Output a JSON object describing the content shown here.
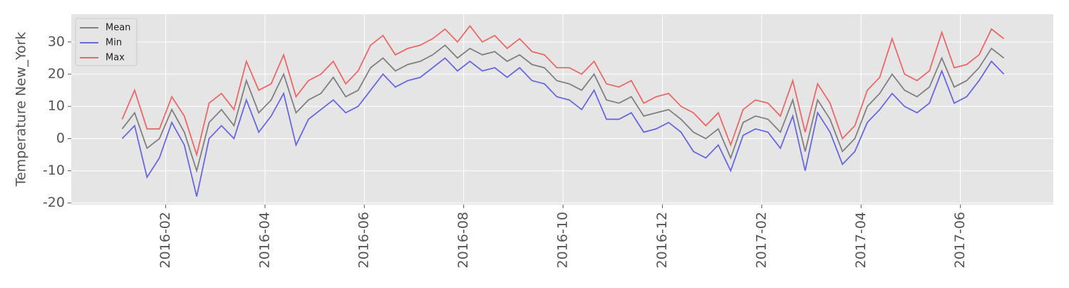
{
  "chart_data": {
    "type": "line",
    "ylabel": "Temperature New_York",
    "x": [
      "2016-01",
      "2016-01",
      "2016-01",
      "2016-01",
      "2016-02",
      "2016-02",
      "2016-02",
      "2016-02",
      "2016-03",
      "2016-03",
      "2016-03",
      "2016-03",
      "2016-04",
      "2016-04",
      "2016-04",
      "2016-04",
      "2016-05",
      "2016-05",
      "2016-05",
      "2016-05",
      "2016-06",
      "2016-06",
      "2016-06",
      "2016-06",
      "2016-07",
      "2016-07",
      "2016-07",
      "2016-07",
      "2016-08",
      "2016-08",
      "2016-08",
      "2016-08",
      "2016-09",
      "2016-09",
      "2016-09",
      "2016-09",
      "2016-10",
      "2016-10",
      "2016-10",
      "2016-10",
      "2016-11",
      "2016-11",
      "2016-11",
      "2016-11",
      "2016-12",
      "2016-12",
      "2016-12",
      "2016-12",
      "2017-01",
      "2017-01",
      "2017-01",
      "2017-01",
      "2017-02",
      "2017-02",
      "2017-02",
      "2017-02",
      "2017-03",
      "2017-03",
      "2017-03",
      "2017-03",
      "2017-04",
      "2017-04",
      "2017-04",
      "2017-04",
      "2017-05",
      "2017-05",
      "2017-05",
      "2017-05",
      "2017-06",
      "2017-06",
      "2017-06",
      "2017-06"
    ],
    "series": [
      {
        "name": "Mean",
        "color": "#555555",
        "values": [
          3,
          8,
          -3,
          0,
          9,
          2,
          -10,
          5,
          9,
          4,
          18,
          8,
          12,
          20,
          8,
          12,
          14,
          19,
          13,
          15,
          22,
          25,
          21,
          23,
          24,
          26,
          29,
          25,
          28,
          26,
          27,
          24,
          26,
          23,
          22,
          18,
          17,
          15,
          20,
          12,
          11,
          13,
          7,
          8,
          9,
          6,
          2,
          0,
          3,
          -6,
          5,
          7,
          6,
          2,
          12,
          -4,
          12,
          6,
          -4,
          0,
          10,
          14,
          20,
          15,
          13,
          16,
          25,
          16,
          18,
          22,
          28,
          25
        ]
      },
      {
        "name": "Min",
        "color": "#3333dd",
        "values": [
          0,
          4,
          -12,
          -6,
          5,
          -2,
          -18,
          0,
          4,
          0,
          12,
          2,
          7,
          14,
          -2,
          6,
          9,
          12,
          8,
          10,
          15,
          20,
          16,
          18,
          19,
          22,
          25,
          21,
          24,
          21,
          22,
          19,
          22,
          18,
          17,
          13,
          12,
          9,
          15,
          6,
          6,
          8,
          2,
          3,
          5,
          2,
          -4,
          -6,
          -2,
          -10,
          1,
          3,
          2,
          -3,
          7,
          -10,
          8,
          2,
          -8,
          -4,
          5,
          9,
          14,
          10,
          8,
          11,
          21,
          11,
          13,
          18,
          24,
          20
        ]
      },
      {
        "name": "Max",
        "color": "#ee3333",
        "values": [
          6,
          15,
          3,
          3,
          13,
          7,
          -5,
          11,
          14,
          9,
          24,
          15,
          17,
          26,
          13,
          18,
          20,
          24,
          17,
          21,
          29,
          32,
          26,
          28,
          29,
          31,
          34,
          30,
          35,
          30,
          32,
          28,
          31,
          27,
          26,
          22,
          22,
          20,
          24,
          17,
          16,
          18,
          11,
          13,
          14,
          10,
          8,
          4,
          8,
          -2,
          9,
          12,
          11,
          7,
          18,
          2,
          17,
          11,
          0,
          4,
          15,
          19,
          31,
          20,
          18,
          21,
          33,
          22,
          23,
          26,
          34,
          31
        ]
      }
    ],
    "ylim": [
      -20.5,
      38.6
    ],
    "yticks": [
      -20,
      -10,
      0,
      10,
      20,
      30
    ],
    "xticks": [
      "2016-02",
      "2016-04",
      "2016-06",
      "2016-08",
      "2016-10",
      "2016-12",
      "2017-02",
      "2017-04",
      "2017-06"
    ],
    "grid": true,
    "legend": "upper-left"
  }
}
